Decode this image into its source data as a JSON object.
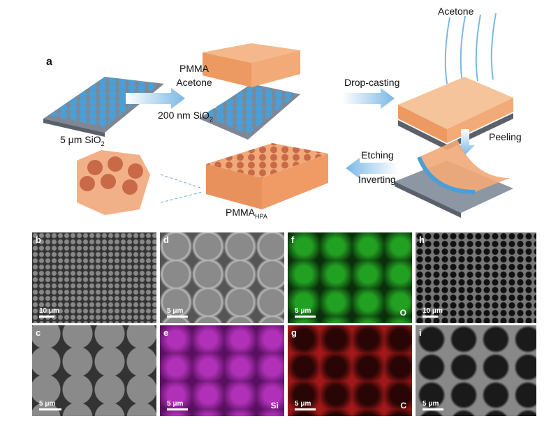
{
  "panel_a": {
    "label": "a",
    "step1_top": "PMMA",
    "step1_mid": "Acetone",
    "step1_bottom": "200 nm SiO",
    "step1_sub": "2",
    "substrate_label": "5 μm SiO",
    "substrate_sub": "2",
    "step2": "Drop-casting",
    "evaporation": "Acetone",
    "step3": "Peeling",
    "step4_top": "Etching",
    "step4_bottom": "Inverting",
    "product": "PMMA",
    "product_sub": "HPA"
  },
  "panels": [
    {
      "label": "b",
      "scale": "10 μm",
      "element": ""
    },
    {
      "label": "c",
      "scale": "5 μm",
      "element": ""
    },
    {
      "label": "d",
      "scale": "5 μm",
      "element": ""
    },
    {
      "label": "e",
      "scale": "5 μm",
      "element": "Si"
    },
    {
      "label": "f",
      "scale": "5 μm",
      "element": "O"
    },
    {
      "label": "g",
      "scale": "5 μm",
      "element": "C"
    },
    {
      "label": "h",
      "scale": "10 μm",
      "element": ""
    },
    {
      "label": "i",
      "scale": "5 μm",
      "element": ""
    }
  ],
  "colors": {
    "sphere": "#4a9fd6",
    "pmma": "#f0a070",
    "arrow": "#7ab8e6",
    "substrate": "#7f8794",
    "edx_o": "#1a9a1a",
    "edx_si": "#a020a8",
    "edx_c": "#b01818",
    "sem": "#6a6a6a"
  }
}
